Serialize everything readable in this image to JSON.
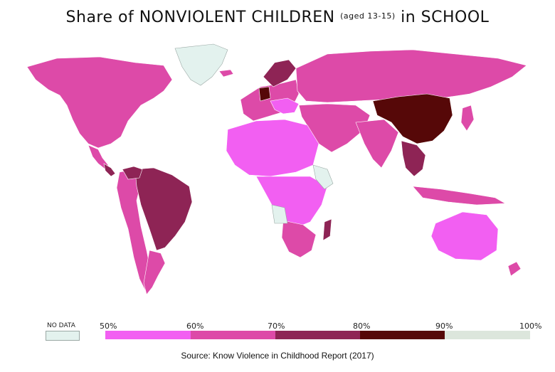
{
  "title": {
    "part1": "Share of NONVIOLENT CHILDREN",
    "part2": "(aged 13-15)",
    "part3": "in SCHOOL"
  },
  "colors": {
    "ocean": "#ffffff",
    "no_data": "#e3f2ee",
    "band_50_60": "#f25ff2",
    "band_60_70": "#dd4aa8",
    "band_70_80": "#8e2455",
    "band_80_90": "#560808",
    "band_90_100": "#dce6dc",
    "border": "#ffffff"
  },
  "legend": {
    "no_data_label": "NO DATA",
    "ticks": [
      "50%",
      "60%",
      "70%",
      "80%",
      "90%",
      "100%"
    ]
  },
  "source": "Source: Know Violence in Childhood Report (2017)"
}
